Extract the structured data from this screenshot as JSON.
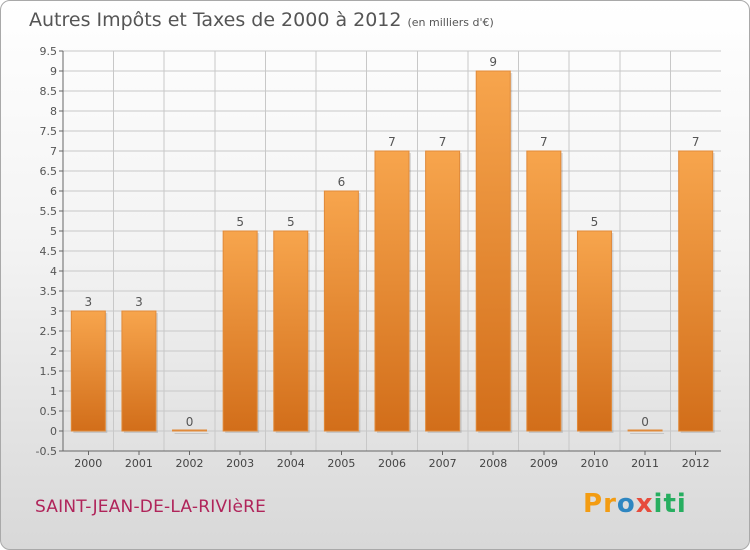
{
  "page": {
    "title": "Autres Impôts et Taxes de 2000 à 2012",
    "unit_note": "(en milliers d'€)",
    "commune": "SAINT-JEAN-DE-LA-RIVIèRE",
    "logo_text": "Proxiti"
  },
  "colors": {
    "bar_light": "#f7a54d",
    "bar_dark": "#d26e1a",
    "grid": "#c8c8c8",
    "commune_text": "#b0245a"
  },
  "chart_data": {
    "type": "bar",
    "title": "Autres Impôts et Taxes de 2000 à 2012",
    "subtitle": "(en milliers d'€)",
    "categories": [
      "2000",
      "2001",
      "2002",
      "2003",
      "2004",
      "2005",
      "2006",
      "2007",
      "2008",
      "2009",
      "2010",
      "2011",
      "2012"
    ],
    "values": [
      3,
      3,
      0,
      5,
      5,
      6,
      7,
      7,
      9,
      7,
      5,
      0,
      7
    ],
    "value_labels": [
      "3",
      "3",
      "0",
      "5",
      "5",
      "6",
      "7",
      "7",
      "9",
      "7",
      "5",
      "0",
      "7"
    ],
    "ylim": [
      -0.5,
      9.5
    ],
    "yticks": [
      "-0.5",
      "0",
      "0.5",
      "1",
      "1.5",
      "2",
      "2.5",
      "3",
      "3.5",
      "4",
      "4.5",
      "5",
      "5.5",
      "6",
      "6.5",
      "7",
      "7.5",
      "8",
      "8.5",
      "9",
      "9.5"
    ],
    "ytick_values": [
      -0.5,
      0,
      0.5,
      1,
      1.5,
      2,
      2.5,
      3,
      3.5,
      4,
      4.5,
      5,
      5.5,
      6,
      6.5,
      7,
      7.5,
      8,
      8.5,
      9,
      9.5
    ],
    "grid": true,
    "xlabel": "",
    "ylabel": ""
  }
}
